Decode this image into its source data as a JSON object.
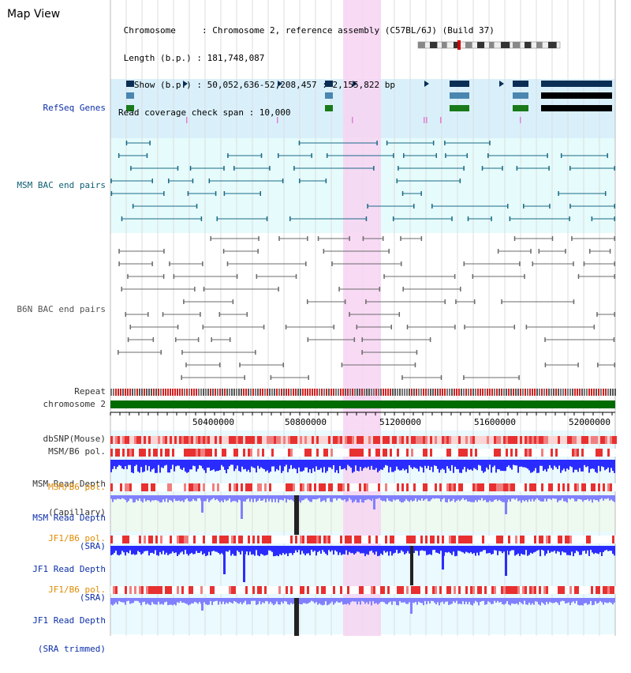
{
  "app": {
    "title": "Map View"
  },
  "info": {
    "lines": [
      " Chromosome     : Chromosome 2, reference assembly (C57BL/6J) (Build 37)",
      " Length (b.p.) : 181,748,087",
      "   Show (b.p.) : 50,052,636-52,208,457 : 2,155,822 bp",
      "Read coverage check span : 10,000"
    ]
  },
  "tracks": {
    "refseq": "RefSeq Genes",
    "msm_bac": "MSM BAC end pairs",
    "b6n_bac": "B6N BAC end pairs",
    "repeat": "Repeat",
    "chromosome": "chromosome 2",
    "dbsnp": "dbSNP(Mouse)",
    "msm_b6_pol": "MSM/B6 pol.",
    "msm_depth_cap_1": "MSM Read Depth",
    "msm_depth_cap_2": "(Capillary)",
    "msm_b6_pol2": "MSM/B6 pol.",
    "msm_depth_sra_1": "MSM Read Depth",
    "msm_depth_sra_2": "(SRA)",
    "jf1_b6_pol": "JF1/B6 pol.",
    "jf1_depth_sra_1": "JF1 Read Depth",
    "jf1_depth_sra_2": "(SRA)",
    "jf1_b6_pol2": "JF1/B6 pol.",
    "jf1_depth_trim_1": "JF1 Read Depth",
    "jf1_depth_trim_2": "(SRA trimmed)"
  },
  "axis": {
    "ticks": [
      "50400000",
      "50800000",
      "51200000",
      "51600000",
      "52000000"
    ]
  },
  "colors": {
    "highlight": "#f7d4f2",
    "refseq_bg": "#d9f0fb",
    "msm_bg": "#e6fbfb",
    "chromosome": "#006b00",
    "depth_blue": "#2a2cff",
    "depth_light": "#8080ff"
  }
}
